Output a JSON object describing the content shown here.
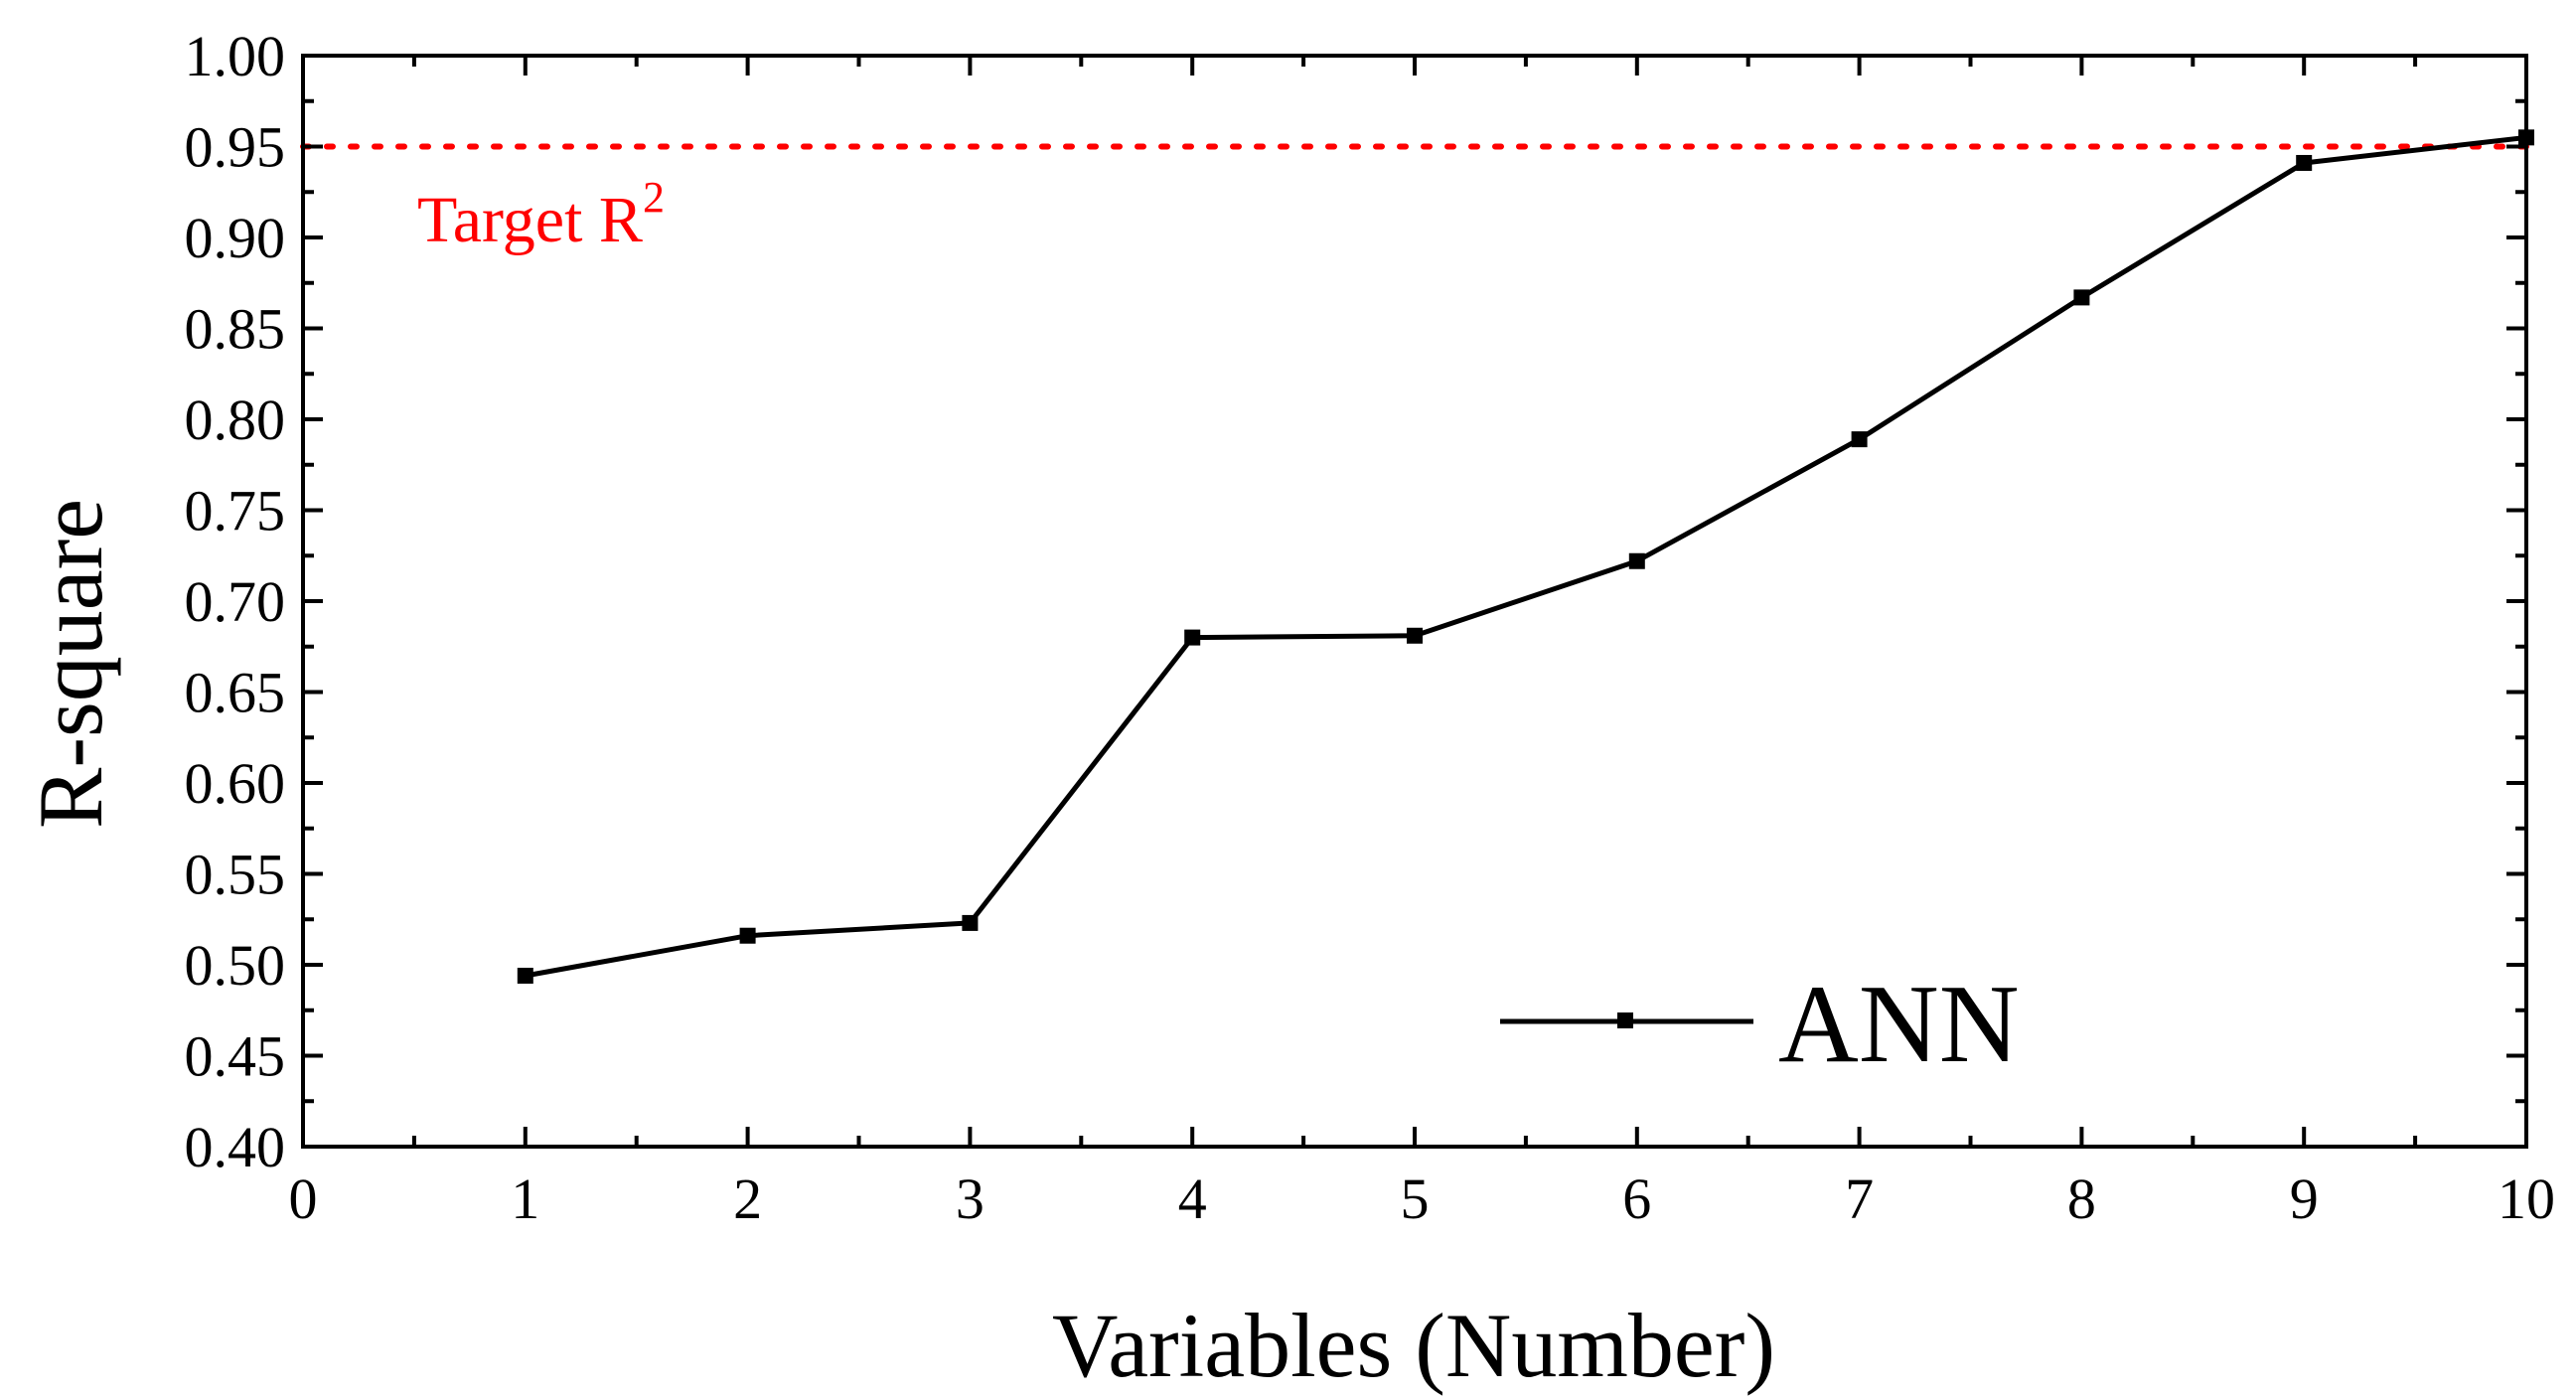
{
  "chart_data": {
    "type": "line",
    "title": "",
    "xlabel": "Variables (Number)",
    "ylabel": "R-square",
    "xlim": [
      0,
      10
    ],
    "ylim": [
      0.4,
      1.0
    ],
    "x_ticks": [
      "0",
      "1",
      "2",
      "3",
      "4",
      "5",
      "6",
      "7",
      "8",
      "9",
      "10"
    ],
    "y_ticks": [
      "0.40",
      "0.45",
      "0.50",
      "0.55",
      "0.60",
      "0.65",
      "0.70",
      "0.75",
      "0.80",
      "0.85",
      "0.90",
      "0.95",
      "1.00"
    ],
    "grid": false,
    "legend_position": "bottom-right",
    "series": [
      {
        "name": "ANN",
        "color": "#000000",
        "marker": "square",
        "x": [
          1,
          2,
          3,
          4,
          5,
          6,
          7,
          8,
          9,
          10
        ],
        "y": [
          0.494,
          0.516,
          0.523,
          0.68,
          0.681,
          0.722,
          0.789,
          0.867,
          0.941,
          0.955
        ]
      }
    ],
    "reference_lines": [
      {
        "orientation": "horizontal",
        "y": 0.95,
        "style": "dotted",
        "color": "#ff0000",
        "label": "Target R",
        "label_superscript": "2"
      }
    ]
  }
}
